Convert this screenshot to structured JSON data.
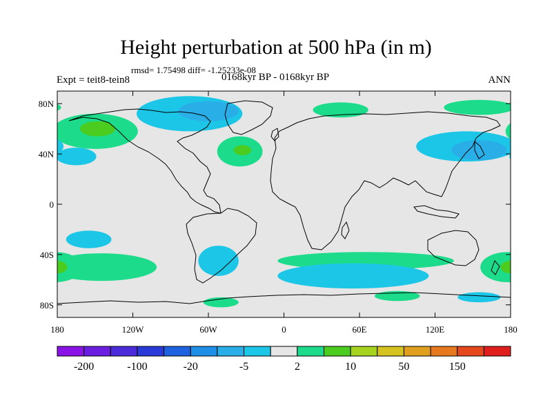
{
  "title": "Height perturbation at 500 hPa (in m)",
  "stats_line": "rmsd= 1.75498  diff= -1.25233e-08",
  "left_label": "Expt = teit8-tein8",
  "center_label": "0168kyr BP - 0168kyr BP",
  "right_label": "ANN",
  "axes": {
    "lon_range": [
      -180,
      180
    ],
    "lat_range": [
      -90,
      90
    ],
    "lat_ticks": [
      {
        "value": 80,
        "label": "80N"
      },
      {
        "value": 40,
        "label": "40N"
      },
      {
        "value": 0,
        "label": "0"
      },
      {
        "value": -40,
        "label": "40S"
      },
      {
        "value": -80,
        "label": "80S"
      }
    ],
    "lon_ticks": [
      {
        "value": -180,
        "label": "180"
      },
      {
        "value": -120,
        "label": "120W"
      },
      {
        "value": -60,
        "label": "60W"
      },
      {
        "value": 0,
        "label": "0"
      },
      {
        "value": 60,
        "label": "60E"
      },
      {
        "value": 120,
        "label": "120E"
      },
      {
        "value": 180,
        "label": "180"
      }
    ]
  },
  "colors": {
    "background_field": "#e6e6e6",
    "coast": "#000000",
    "levels": [
      "#8a14e6",
      "#6a1ee0",
      "#4c2bdb",
      "#2a3ad8",
      "#1e62e0",
      "#1e8ee6",
      "#2aaee8",
      "#1cc6e6",
      "#e6e6e6",
      "#1cdc8c",
      "#4ccc1e",
      "#a6d41e",
      "#d4c21e",
      "#e0a01e",
      "#e6781e",
      "#e6481e",
      "#e01e1e"
    ]
  },
  "colorbar_labels": [
    {
      "after_box": 1,
      "label": "-200"
    },
    {
      "after_box": 3,
      "label": "-100"
    },
    {
      "after_box": 5,
      "label": "-20"
    },
    {
      "after_box": 7,
      "label": "-5"
    },
    {
      "after_box": 9,
      "label": "2"
    },
    {
      "after_box": 11,
      "label": "10"
    },
    {
      "after_box": 13,
      "label": "50"
    },
    {
      "after_box": 15,
      "label": "150"
    }
  ],
  "regions": [
    {
      "name": "arctic-negative",
      "kind": "blue",
      "lon": -75,
      "lat": 72,
      "dlon": 42,
      "dlat": 14
    },
    {
      "name": "arctic-core-negative",
      "kind": "blue2",
      "lon": -60,
      "lat": 74,
      "dlon": 24,
      "dlat": 8
    },
    {
      "name": "alaska-positive",
      "kind": "green",
      "lon": -150,
      "lat": 58,
      "dlon": 34,
      "dlat": 14
    },
    {
      "name": "alaska-core-positive",
      "kind": "green2",
      "lon": -148,
      "lat": 60,
      "dlon": 14,
      "dlat": 6
    },
    {
      "name": "pacific-ne-negative",
      "kind": "blue",
      "lon": -165,
      "lat": 38,
      "dlon": 16,
      "dlat": 7
    },
    {
      "name": "atlantic-positive",
      "kind": "green",
      "lon": -35,
      "lat": 42,
      "dlon": 18,
      "dlat": 12
    },
    {
      "name": "atlantic-core-positive",
      "kind": "green2",
      "lon": -33,
      "lat": 43,
      "dlon": 7,
      "dlat": 4
    },
    {
      "name": "siberia-positive",
      "kind": "green",
      "lon": 45,
      "lat": 75,
      "dlon": 22,
      "dlat": 6
    },
    {
      "name": "npacific-negative",
      "kind": "blue",
      "lon": 145,
      "lat": 46,
      "dlon": 40,
      "dlat": 12
    },
    {
      "name": "npacific-core-negative",
      "kind": "blue2",
      "lon": 155,
      "lat": 43,
      "dlon": 22,
      "dlat": 8
    },
    {
      "name": "arctic-east-positive",
      "kind": "green",
      "lon": 155,
      "lat": 77,
      "dlon": 28,
      "dlat": 6
    },
    {
      "name": "spacific-negative",
      "kind": "blue",
      "lon": -155,
      "lat": -28,
      "dlon": 18,
      "dlat": 7
    },
    {
      "name": "spacific-positive",
      "kind": "green",
      "lon": -145,
      "lat": -50,
      "dlon": 44,
      "dlat": 11
    },
    {
      "name": "spacific-core-positive",
      "kind": "green2",
      "lon": -180,
      "lat": -50,
      "dlon": 8,
      "dlat": 5
    },
    {
      "name": "satlantic-negative",
      "kind": "blue",
      "lon": -52,
      "lat": -45,
      "dlon": 16,
      "dlat": 12
    },
    {
      "name": "drake-positive",
      "kind": "green",
      "lon": -50,
      "lat": -78,
      "dlon": 14,
      "dlat": 4
    },
    {
      "name": "indian-south-positive",
      "kind": "green",
      "lon": 65,
      "lat": -45,
      "dlon": 70,
      "dlat": 7
    },
    {
      "name": "indian-south-negative",
      "kind": "blue",
      "lon": 55,
      "lat": -57,
      "dlon": 60,
      "dlat": 10
    },
    {
      "name": "indian-ice-positive",
      "kind": "green",
      "lon": 90,
      "lat": -73,
      "dlon": 18,
      "dlat": 4
    },
    {
      "name": "tasman-positive",
      "kind": "green",
      "lon": 178,
      "lat": -50,
      "dlon": 22,
      "dlat": 12
    },
    {
      "name": "tasman-core-positive",
      "kind": "green2",
      "lon": 180,
      "lat": -50,
      "dlon": 8,
      "dlat": 5
    },
    {
      "name": "ross-negative",
      "kind": "blue",
      "lon": 155,
      "lat": -74,
      "dlon": 17,
      "dlat": 4
    }
  ]
}
